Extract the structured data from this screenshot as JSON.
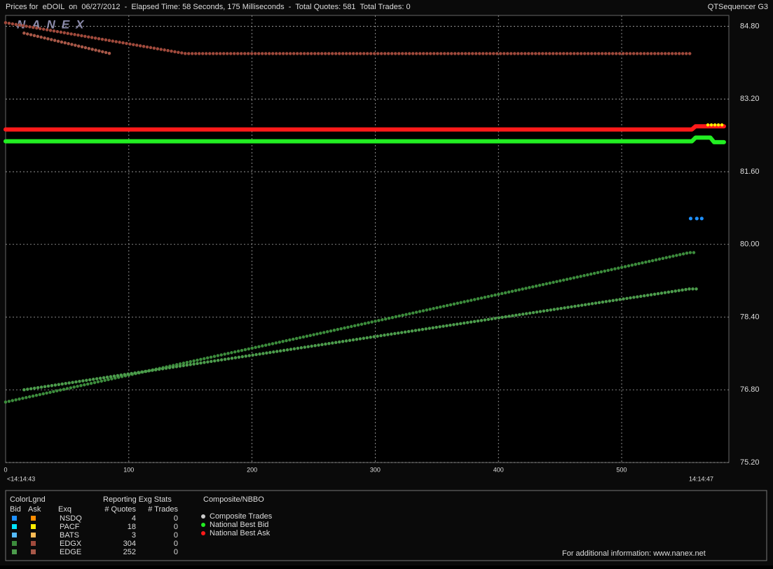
{
  "chart_data": {
    "type": "scatter",
    "title": "Prices for  eDOIL  on  06/27/2012  -  Elapsed Time: 58 Seconds, 175 Milliseconds  -  Total Quotes: 581  Total Trades: 0",
    "app_name": "QTSequencer G3",
    "watermark": "NANEX",
    "xlim": [
      0,
      587
    ],
    "xticks": [
      0,
      100,
      200,
      300,
      400,
      500
    ],
    "time_labels": [
      "<14:14:43",
      "14:14:47"
    ],
    "ylim": [
      75.2,
      85.04
    ],
    "yticks": [
      {
        "value": 75.2,
        "label": "75.20"
      },
      {
        "value": 76.8,
        "label": "76.80"
      },
      {
        "value": 78.4,
        "label": "78.40"
      },
      {
        "value": 80,
        "label": "80.00"
      },
      {
        "value": 81.6,
        "label": "81.60"
      },
      {
        "value": 83.2,
        "label": "83.20"
      },
      {
        "value": 84.8,
        "label": "84.80"
      }
    ],
    "grid": true,
    "series": [
      {
        "color": "#a04a3c",
        "marker": "dots",
        "x": [
          0,
          146,
          557
        ],
        "values": [
          84.88,
          84.2,
          84.2
        ]
      },
      {
        "color": "#a85848",
        "marker": "dots",
        "x": [
          15,
          85
        ],
        "values": [
          84.65,
          84.2
        ]
      },
      {
        "color": "#ff1a1a",
        "marker": "line",
        "x": [
          0,
          557,
          560,
          583
        ],
        "values": [
          82.53,
          82.53,
          82.6,
          82.6
        ]
      },
      {
        "color": "#22ee22",
        "marker": "line",
        "x": [
          0,
          557,
          560,
          572,
          575,
          583
        ],
        "values": [
          82.27,
          82.27,
          82.35,
          82.35,
          82.25,
          82.25
        ]
      },
      {
        "color": "#ffee00",
        "marker": "dots",
        "x": [
          570,
          583
        ],
        "values": [
          82.63,
          82.63
        ]
      },
      {
        "color": "#1e90ff",
        "marker": "points",
        "x": [
          556,
          561,
          565
        ],
        "values": [
          80.57,
          80.57,
          80.57
        ]
      },
      {
        "color": "#3c8c3c",
        "marker": "dots",
        "x": [
          0,
          555,
          561
        ],
        "values": [
          76.53,
          79.82,
          79.82
        ]
      },
      {
        "color": "#4c9c4c",
        "marker": "dots",
        "x": [
          15,
          555,
          562
        ],
        "values": [
          76.8,
          79.02,
          79.02
        ]
      }
    ],
    "legend": {
      "title": "ColorLgnd",
      "bid_header": "Bid",
      "ask_header": "Ask",
      "exq_header": "Exq",
      "stats_title": "Reporting Exg Stats",
      "quotes_header": "# Quotes",
      "trades_header": "# Trades",
      "rows": [
        {
          "exq": "NSDQ",
          "bid_color": "#1e90ff",
          "ask_color": "#ff8c00",
          "quotes": 4,
          "trades": 0
        },
        {
          "exq": "PACF",
          "bid_color": "#00e5ff",
          "ask_color": "#ffee00",
          "quotes": 18,
          "trades": 0
        },
        {
          "exq": "BATS",
          "bid_color": "#55bbff",
          "ask_color": "#ffbb55",
          "quotes": 3,
          "trades": 0
        },
        {
          "exq": "EDGX",
          "bid_color": "#3c8c3c",
          "ask_color": "#a04a3c",
          "quotes": 304,
          "trades": 0
        },
        {
          "exq": "EDGE",
          "bid_color": "#4c9c4c",
          "ask_color": "#a85848",
          "quotes": 252,
          "trades": 0
        }
      ],
      "composite_title": "Composite/NBBO",
      "composite": [
        {
          "label": "Composite Trades",
          "color": "#cccccc"
        },
        {
          "label": "National Best Bid",
          "color": "#22ee22"
        },
        {
          "label": "National Best Ask",
          "color": "#ff1a1a"
        }
      ],
      "footer": "For additional information: www.nanex.net"
    }
  }
}
